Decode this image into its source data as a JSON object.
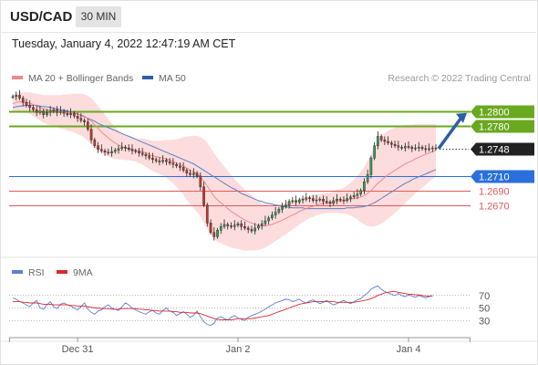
{
  "header": {
    "symbol": "USD/CAD",
    "timeframe": "30 MIN"
  },
  "timestamp": "Tuesday, January 4, 2022 12:47:19 AM CET",
  "legend": {
    "ma20_label": "MA 20 + Bollinger Bands",
    "ma50_label": "MA 50"
  },
  "credit": "Research © 2022 Trading Central",
  "colors": {
    "resistance": "#6aa820",
    "current": "#222222",
    "pivot": "#2a6fdb",
    "support": "#e05a5a",
    "ma20": "#f08a8a",
    "ma50": "#5a7fc8",
    "bands": "#fbd0d0",
    "rsi": "#5b7fd6",
    "rsi_ma": "#d9282f",
    "arrow": "#2b5da8"
  },
  "rsi_legend": {
    "rsi_label": "RSI",
    "ma_label": "9MA"
  },
  "chart_data": {
    "type": "candlestick",
    "price_range": [
      1.26,
      1.283
    ],
    "levels": [
      {
        "label": "1.2800",
        "value": 1.28,
        "kind": "resistance"
      },
      {
        "label": "1.2780",
        "value": 1.278,
        "kind": "resistance"
      },
      {
        "label": "1.2748",
        "value": 1.2748,
        "kind": "current"
      },
      {
        "label": "1.2710",
        "value": 1.271,
        "kind": "pivot"
      },
      {
        "label": "1.2690",
        "value": 1.269,
        "kind": "support"
      },
      {
        "label": "1.2670",
        "value": 1.267,
        "kind": "support"
      }
    ],
    "close": [
      1.282,
      1.2822,
      1.2818,
      1.2812,
      1.2808,
      1.2805,
      1.2802,
      1.2798,
      1.28,
      1.2795,
      1.2798,
      1.28,
      1.2802,
      1.2798,
      1.28,
      1.2797,
      1.2795,
      1.2797,
      1.2793,
      1.279,
      1.2787,
      1.2785,
      1.2775,
      1.276,
      1.2752,
      1.2747,
      1.2745,
      1.2743,
      1.2742,
      1.2744,
      1.2746,
      1.2748,
      1.275,
      1.2749,
      1.2747,
      1.2745,
      1.2744,
      1.2742,
      1.274,
      1.2738,
      1.2735,
      1.2733,
      1.2731,
      1.273,
      1.2732,
      1.273,
      1.2728,
      1.2726,
      1.2724,
      1.2722,
      1.2718,
      1.2714,
      1.2712,
      1.2714,
      1.271,
      1.2695,
      1.267,
      1.2645,
      1.2632,
      1.2626,
      1.2635,
      1.264,
      1.2643,
      1.2641,
      1.264,
      1.2642,
      1.2644,
      1.264,
      1.2638,
      1.2636,
      1.2634,
      1.2638,
      1.2641,
      1.2644,
      1.2648,
      1.2652,
      1.2656,
      1.266,
      1.2664,
      1.2668,
      1.267,
      1.2675,
      1.2676,
      1.2674,
      1.2677,
      1.2678,
      1.268,
      1.2679,
      1.2676,
      1.2677,
      1.2678,
      1.2675,
      1.2674,
      1.2672,
      1.2676,
      1.2678,
      1.2677,
      1.2676,
      1.2679,
      1.2681,
      1.2683,
      1.2685,
      1.269,
      1.2702,
      1.2712,
      1.2735,
      1.2752,
      1.2765,
      1.276,
      1.2758,
      1.2756,
      1.2754,
      1.2752,
      1.275,
      1.2749,
      1.2751,
      1.275,
      1.2748,
      1.2749,
      1.275,
      1.2748,
      1.2747,
      1.2748,
      1.2749,
      1.2748
    ],
    "ma20": [
      1.281,
      1.2812,
      1.2813,
      1.2813,
      1.2812,
      1.2811,
      1.2809,
      1.2807,
      1.2805,
      1.2803,
      1.2802,
      1.2801,
      1.28,
      1.28,
      1.2799,
      1.2799,
      1.2798,
      1.2798,
      1.2797,
      1.2796,
      1.2795,
      1.2793,
      1.279,
      1.2786,
      1.2781,
      1.2776,
      1.2771,
      1.2767,
      1.2763,
      1.2759,
      1.2756,
      1.2753,
      1.2751,
      1.2749,
      1.2748,
      1.2747,
      1.2746,
      1.2745,
      1.2744,
      1.2742,
      1.274,
      1.2738,
      1.2737,
      1.2736,
      1.2735,
      1.2734,
      1.2732,
      1.273,
      1.2728,
      1.2726,
      1.2724,
      1.2721,
      1.2718,
      1.2716,
      1.2713,
      1.2709,
      1.2703,
      1.2696,
      1.2689,
      1.2682,
      1.2677,
      1.2673,
      1.2669,
      1.2665,
      1.2661,
      1.2658,
      1.2655,
      1.2652,
      1.2649,
      1.2647,
      1.2645,
      1.2643,
      1.2642,
      1.2641,
      1.2641,
      1.2642,
      1.2643,
      1.2645,
      1.2647,
      1.2649,
      1.2651,
      1.2654,
      1.2656,
      1.2658,
      1.2661,
      1.2663,
      1.2665,
      1.2667,
      1.2668,
      1.267,
      1.2671,
      1.2672,
      1.2673,
      1.2673,
      1.2674,
      1.2675,
      1.2675,
      1.2676,
      1.2677,
      1.2678,
      1.2679,
      1.268,
      1.2681,
      1.2683,
      1.2686,
      1.269,
      1.2695,
      1.27,
      1.2704,
      1.2708,
      1.2712,
      1.2715,
      1.2718,
      1.2721,
      1.2724,
      1.2727,
      1.2729,
      1.2731,
      1.2734,
      1.2736,
      1.2738,
      1.274,
      1.2742,
      1.2744,
      1.2746
    ],
    "ma50": [
      1.2805,
      1.2806,
      1.2807,
      1.2807,
      1.2808,
      1.2808,
      1.2808,
      1.2808,
      1.2807,
      1.2806,
      1.2806,
      1.2805,
      1.2804,
      1.2803,
      1.2802,
      1.2801,
      1.28,
      1.2799,
      1.2797,
      1.2796,
      1.2794,
      1.2792,
      1.279,
      1.2788,
      1.2786,
      1.2783,
      1.2781,
      1.2779,
      1.2777,
      1.2775,
      1.2773,
      1.2771,
      1.2769,
      1.2767,
      1.2765,
      1.2763,
      1.2761,
      1.2759,
      1.2757,
      1.2755,
      1.2753,
      1.2751,
      1.2749,
      1.2747,
      1.2745,
      1.2743,
      1.2741,
      1.2739,
      1.2737,
      1.2735,
      1.2733,
      1.2731,
      1.2729,
      1.2727,
      1.2724,
      1.2721,
      1.2718,
      1.2715,
      1.2712,
      1.2709,
      1.2706,
      1.2703,
      1.27,
      1.2697,
      1.2694,
      1.2692,
      1.2689,
      1.2686,
      1.2684,
      1.2682,
      1.268,
      1.2678,
      1.2676,
      1.2675,
      1.2673,
      1.2672,
      1.2671,
      1.267,
      1.2669,
      1.2668,
      1.2667,
      1.2667,
      1.2666,
      1.2666,
      1.2666,
      1.2666,
      1.2665,
      1.2665,
      1.2665,
      1.2665,
      1.2665,
      1.2665,
      1.2665,
      1.2665,
      1.2665,
      1.2665,
      1.2665,
      1.2665,
      1.2666,
      1.2666,
      1.2666,
      1.2667,
      1.2667,
      1.2668,
      1.2669,
      1.2671,
      1.2673,
      1.2676,
      1.2679,
      1.2682,
      1.2685,
      1.2688,
      1.2691,
      1.2694,
      1.2697,
      1.27,
      1.2702,
      1.2705,
      1.2707,
      1.2709,
      1.2711,
      1.2713,
      1.2715,
      1.2717,
      1.2719
    ],
    "band_width": [
      0.0012,
      0.0012,
      0.0013,
      0.0013,
      0.0014,
      0.0015,
      0.0016,
      0.0017,
      0.0018,
      0.0019,
      0.002,
      0.0021,
      0.0022,
      0.0022,
      0.0023,
      0.0024,
      0.0025,
      0.0026,
      0.0027,
      0.0028,
      0.0029,
      0.003,
      0.0031,
      0.0032,
      0.0032,
      0.0031,
      0.003,
      0.0028,
      0.0026,
      0.0024,
      0.0022,
      0.002,
      0.0018,
      0.0017,
      0.0016,
      0.0016,
      0.0016,
      0.0017,
      0.0018,
      0.0019,
      0.002,
      0.0021,
      0.0022,
      0.0023,
      0.0024,
      0.0026,
      0.0028,
      0.003,
      0.0033,
      0.0036,
      0.004,
      0.0044,
      0.0047,
      0.005,
      0.0053,
      0.0055,
      0.0058,
      0.006,
      0.006,
      0.0059,
      0.0058,
      0.0056,
      0.0054,
      0.0052,
      0.005,
      0.0048,
      0.0046,
      0.0044,
      0.0042,
      0.004,
      0.0038,
      0.0036,
      0.0034,
      0.0032,
      0.003,
      0.0028,
      0.0026,
      0.0025,
      0.0024,
      0.0023,
      0.0022,
      0.0021,
      0.002,
      0.0019,
      0.0018,
      0.0017,
      0.0016,
      0.0015,
      0.0015,
      0.0014,
      0.0014,
      0.0014,
      0.0014,
      0.0014,
      0.0015,
      0.0016,
      0.0017,
      0.0018,
      0.002,
      0.0023,
      0.0026,
      0.003,
      0.0035,
      0.004,
      0.0045,
      0.005,
      0.0055,
      0.0058,
      0.006,
      0.0061,
      0.0061,
      0.006,
      0.0059,
      0.0058,
      0.0056,
      0.0054,
      0.0052,
      0.005,
      0.0048,
      0.0046,
      0.0044,
      0.0042,
      0.004,
      0.0038,
      0.0036,
      0.0034,
      0.0032
    ],
    "forecast_arrow": {
      "from": 1.2748,
      "to": 1.28
    },
    "x_tick_labels": [
      {
        "label": "Dec 31",
        "index": 19
      },
      {
        "label": "Jan 2",
        "index": 66
      },
      {
        "label": "Jan 4",
        "index": 116
      }
    ],
    "rsi": {
      "range": [
        10,
        90
      ],
      "tick_labels": [
        70,
        50,
        30
      ],
      "values": [
        66,
        64,
        60,
        58,
        55,
        52,
        58,
        62,
        50,
        48,
        55,
        60,
        52,
        49,
        56,
        58,
        55,
        53,
        50,
        47,
        52,
        58,
        48,
        43,
        40,
        45,
        47,
        52,
        55,
        50,
        48,
        46,
        52,
        58,
        55,
        50,
        47,
        44,
        42,
        40,
        44,
        46,
        42,
        40,
        46,
        50,
        45,
        43,
        38,
        41,
        44,
        40,
        35,
        38,
        45,
        36,
        28,
        24,
        22,
        26,
        34,
        36,
        33,
        31,
        35,
        38,
        34,
        32,
        30,
        35,
        38,
        40,
        42,
        45,
        48,
        52,
        55,
        58,
        60,
        62,
        64,
        63,
        60,
        62,
        64,
        60,
        58,
        61,
        63,
        60,
        57,
        59,
        62,
        58,
        55,
        57,
        60,
        62,
        59,
        57,
        60,
        63,
        65,
        70,
        74,
        80,
        83,
        85,
        80,
        76,
        74,
        72,
        70,
        73,
        70,
        68,
        71,
        69,
        67,
        70,
        68,
        66,
        68,
        70
      ],
      "ma": [
        60,
        60,
        60,
        59,
        59,
        58,
        58,
        58,
        57,
        56,
        56,
        56,
        55,
        55,
        55,
        55,
        55,
        54,
        54,
        53,
        53,
        53,
        52,
        51,
        50,
        50,
        49,
        49,
        49,
        48,
        48,
        48,
        49,
        49,
        49,
        49,
        49,
        48,
        48,
        47,
        47,
        46,
        46,
        45,
        45,
        45,
        45,
        44,
        44,
        43,
        43,
        43,
        42,
        42,
        42,
        41,
        39,
        37,
        35,
        33,
        32,
        31,
        31,
        31,
        31,
        32,
        33,
        33,
        33,
        33,
        33,
        34,
        35,
        36,
        37,
        38,
        40,
        42,
        44,
        46,
        48,
        50,
        52,
        54,
        56,
        57,
        58,
        59,
        60,
        60,
        60,
        60,
        60,
        60,
        60,
        59,
        59,
        59,
        59,
        59,
        59,
        60,
        61,
        62,
        63,
        65,
        67,
        70,
        72,
        74,
        75,
        76,
        76,
        75,
        74,
        73,
        72,
        72,
        71,
        71,
        70,
        69,
        69,
        69
      ]
    }
  }
}
